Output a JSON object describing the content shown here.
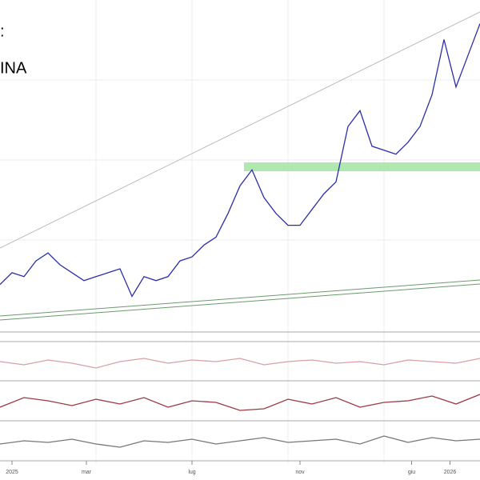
{
  "header": {
    "line1": ":",
    "line2": "INA"
  },
  "chart_data": [
    {
      "type": "line",
      "color": "#2b2fa6",
      "x": [
        0,
        1,
        2,
        3,
        4,
        5,
        6,
        7,
        8,
        9,
        10,
        11,
        12,
        13,
        14,
        15,
        16,
        17,
        18,
        19,
        20,
        21,
        22,
        23,
        24,
        25,
        26,
        27,
        28,
        29,
        30,
        31,
        32,
        33,
        34,
        35,
        36,
        37,
        38,
        39,
        40
      ],
      "values": [
        15,
        18.75,
        17.5,
        22.5,
        25,
        21.25,
        18.75,
        16.25,
        17.5,
        18.75,
        20,
        11.25,
        17.5,
        16.25,
        17.5,
        22.5,
        23.75,
        27.5,
        30,
        37.5,
        46.25,
        51.25,
        42.5,
        37.5,
        33.75,
        33.75,
        38.75,
        43.75,
        47.5,
        65,
        70,
        58.75,
        57.5,
        56.25,
        60,
        65,
        75,
        92.5,
        77.5,
        87.5,
        97.5
      ],
      "xlim": [
        0,
        40
      ],
      "ylim": [
        0,
        105
      ],
      "xticks": [
        {
          "value": 1,
          "label": "2025"
        },
        {
          "value": 7.2,
          "label": "mar"
        },
        {
          "value": 16,
          "label": "lug"
        },
        {
          "value": 25,
          "label": "nov"
        },
        {
          "value": 34.3,
          "label": "giu"
        },
        {
          "value": 37.5,
          "label": "2026"
        }
      ]
    },
    {
      "type": "line",
      "color": "#d9a0a8",
      "x": [
        0,
        2,
        4,
        6,
        8,
        10,
        12,
        14,
        16,
        18,
        20,
        22,
        24,
        26,
        28,
        30,
        32,
        34,
        36,
        38,
        40
      ],
      "values": [
        50,
        40,
        55,
        45,
        30,
        50,
        60,
        45,
        55,
        50,
        60,
        40,
        50,
        55,
        45,
        50,
        40,
        55,
        50,
        45,
        60
      ],
      "xlim": [
        0,
        40
      ],
      "ylim": [
        0,
        100
      ]
    },
    {
      "type": "line",
      "color": "#9b3a44",
      "x": [
        0,
        2,
        4,
        6,
        8,
        10,
        12,
        14,
        16,
        18,
        20,
        22,
        24,
        26,
        28,
        30,
        32,
        34,
        36,
        38,
        40
      ],
      "values": [
        30,
        60,
        50,
        35,
        55,
        40,
        60,
        30,
        50,
        45,
        20,
        25,
        55,
        40,
        60,
        30,
        45,
        50,
        65,
        40,
        70
      ],
      "xlim": [
        0,
        40
      ],
      "ylim": [
        0,
        100
      ]
    },
    {
      "type": "line",
      "color": "#777777",
      "x": [
        0,
        2,
        4,
        6,
        8,
        10,
        12,
        14,
        16,
        18,
        20,
        22,
        24,
        26,
        28,
        30,
        32,
        34,
        36,
        38,
        40
      ],
      "values": [
        40,
        50,
        45,
        55,
        40,
        30,
        50,
        45,
        55,
        40,
        50,
        60,
        45,
        50,
        55,
        40,
        65,
        45,
        60,
        50,
        55
      ],
      "xlim": [
        0,
        40
      ],
      "ylim": [
        0,
        100
      ]
    }
  ]
}
